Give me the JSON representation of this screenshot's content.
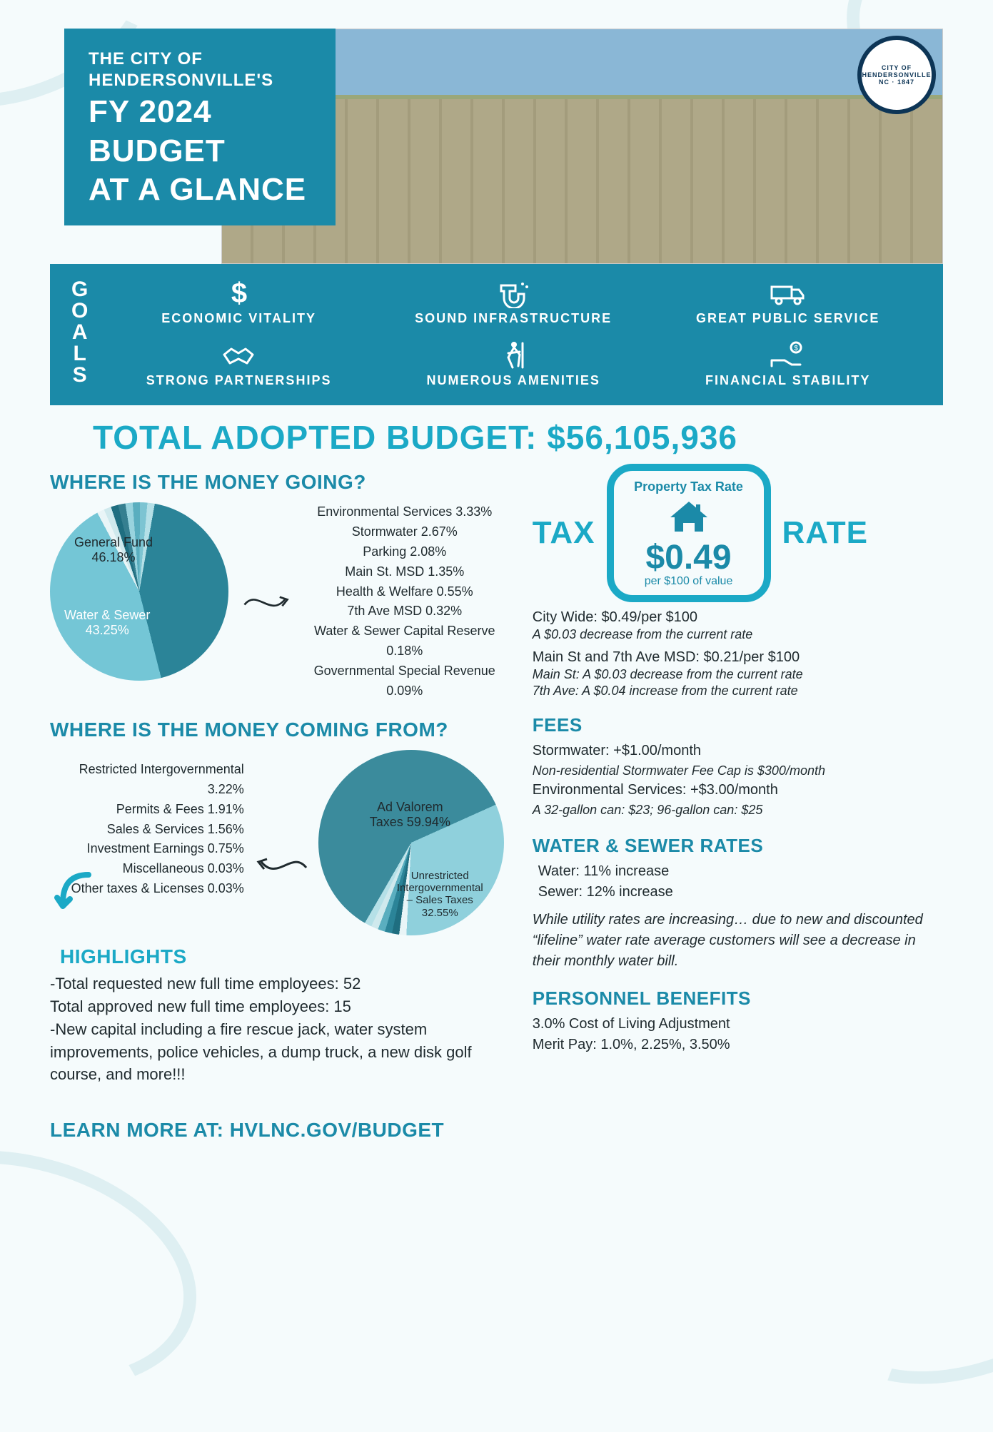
{
  "header": {
    "small1": "THE CITY OF",
    "small2": "HENDERSONVILLE'S",
    "big1": "FY 2024",
    "big2": "BUDGET",
    "big3": "AT A GLANCE",
    "seal_text": "CITY OF HENDERSONVILLE NC · 1847"
  },
  "goals": {
    "label": "GOALS",
    "items": [
      {
        "name": "economic-vitality",
        "label": "ECONOMIC VITALITY",
        "glyph": "$"
      },
      {
        "name": "sound-infrastructure",
        "label": "SOUND INFRASTRUCTURE",
        "glyph": "pipe"
      },
      {
        "name": "great-public-service",
        "label": "GREAT PUBLIC SERVICE",
        "glyph": "truck"
      },
      {
        "name": "strong-partnerships",
        "label": "STRONG PARTNERSHIPS",
        "glyph": "handshake"
      },
      {
        "name": "numerous-amenities",
        "label": "NUMEROUS AMENITIES",
        "glyph": "hiker"
      },
      {
        "name": "financial-stability",
        "label": "FINANCIAL STABILITY",
        "glyph": "hand-coin"
      }
    ]
  },
  "total": {
    "label": "TOTAL ADOPTED BUDGET: ",
    "amount": "$56,105,936"
  },
  "going": {
    "heading": "WHERE IS THE MONEY GOING?",
    "pie": {
      "type": "pie",
      "slices": [
        {
          "label": "General Fund",
          "pct": 46.18,
          "color": "#74c6d6"
        },
        {
          "label": "Water & Sewer",
          "pct": 43.25,
          "color": "#2b8498"
        },
        {
          "label": "Other combined",
          "pct": 10.57,
          "color_segments": [
            "#e9f5f7",
            "#cfe9ed",
            "#1f6e80",
            "#357f90",
            "#98d3de",
            "#5aaebf",
            "#7cc4d2",
            "#b5e0e7"
          ]
        }
      ],
      "label_fontsize": 18,
      "background_color": "#ffffff"
    },
    "other_breakdown": [
      "Environmental Services 3.33%",
      "Stormwater 2.67%",
      "Parking 2.08%",
      "Main St. MSD 1.35%",
      "Health & Welfare 0.55%",
      "7th Ave MSD 0.32%",
      "Water & Sewer Capital Reserve 0.18%",
      "Governmental Special Revenue 0.09%"
    ]
  },
  "coming": {
    "heading": "WHERE IS THE MONEY COMING FROM?",
    "pie": {
      "type": "pie",
      "slices": [
        {
          "label": "Ad Valorem Taxes",
          "pct": 59.94,
          "color": "#3b8b9c"
        },
        {
          "label": "Unrestricted Intergovernmental – Sales Taxes",
          "pct": 32.55,
          "color": "#8fd0dc"
        },
        {
          "label": "Other combined",
          "pct": 7.51,
          "color_segments": [
            "#e9f5f7",
            "#1f6e80",
            "#2b8498",
            "#5aaebf",
            "#cfe9ed",
            "#b5e0e7"
          ]
        }
      ],
      "label_fontsize": 16
    },
    "other_breakdown": [
      "Restricted Intergovernmental 3.22%",
      "Permits & Fees 1.91%",
      "Sales & Services 1.56%",
      "Investment Earnings 0.75%",
      "Miscellaneous 0.03%",
      "Other taxes & Licenses 0.03%"
    ]
  },
  "highlights": {
    "heading": "HIGHLIGHTS",
    "lines": [
      "-Total requested new full time employees: 52",
      "Total approved new full time employees: 15",
      "-New capital including a fire rescue jack, water system improvements, police vehicles, a dump truck, a new disk golf course, and more!!!"
    ]
  },
  "learn_more": "LEARN MORE AT: HVLNC.GOV/BUDGET",
  "tax": {
    "word_left": "TAX",
    "word_right": "RATE",
    "card": {
      "caption": "Property Tax Rate",
      "amount": "$0.49",
      "per": "per $100 of value",
      "accent_color": "#1ba9c6"
    },
    "lines": [
      {
        "main": "City Wide: $0.49/per $100",
        "sub": "A $0.03 decrease from the current rate"
      },
      {
        "main": "Main St and 7th Ave MSD: $0.21/per $100",
        "sub": "Main St: A $0.03 decrease from the current rate",
        "sub2": "7th Ave: A $0.04 increase from the current rate"
      }
    ]
  },
  "fees": {
    "heading": "FEES",
    "lines": [
      {
        "main": "Stormwater: +$1.00/month",
        "sub": "Non-residential Stormwater Fee Cap is $300/month"
      },
      {
        "main": "Environmental Services: +$3.00/month",
        "sub": "A 32-gallon can: $23; 96-gallon can: $25"
      }
    ]
  },
  "water": {
    "heading": "WATER & SEWER RATES",
    "water_line": "Water: 11% increase",
    "sewer_line": "Sewer: 12% increase",
    "note": "While utility rates are increasing… due to new and discounted “lifeline” water rate average customers will see a decrease in their monthly water bill."
  },
  "personnel": {
    "heading": "PERSONNEL BENEFITS",
    "cola": "3.0% Cost of Living Adjustment",
    "merit": "Merit Pay: 1.0%, 2.25%, 3.50%"
  },
  "colors": {
    "teal_dark": "#1b8aa8",
    "teal_bright": "#1ba9c6",
    "teal_mid": "#3b8b9c",
    "teal_light": "#8fd0dc",
    "text": "#1f2a2e"
  }
}
